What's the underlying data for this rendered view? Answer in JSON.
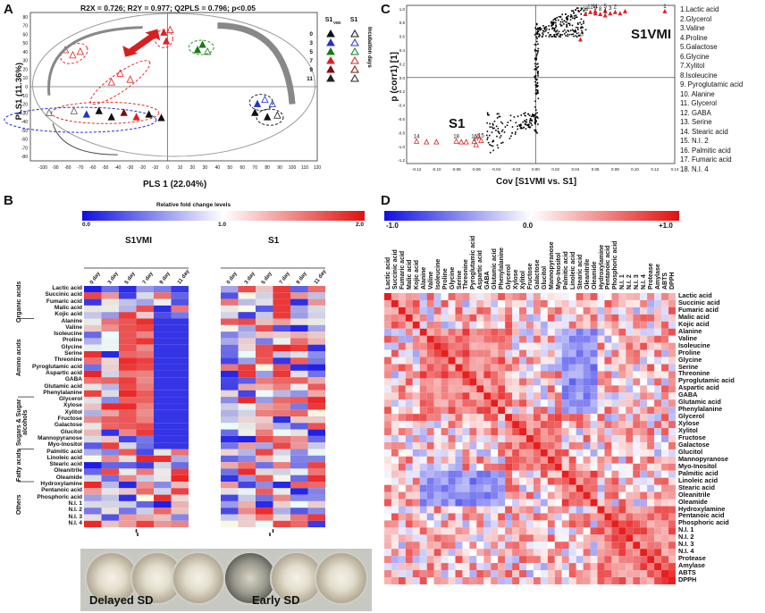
{
  "panels": {
    "a": "A",
    "b": "B",
    "c": "C",
    "d": "D"
  },
  "panelA": {
    "stats": "R2X = 0.726; R2Y = 0.977; Q2PLS = 0.796; p<0.05",
    "xlabel": "PLS 1 (22.04%)",
    "ylabel": "PLS1 (11.36%)",
    "xticks": [
      "-100",
      "-90",
      "-80",
      "-70",
      "-60",
      "-50",
      "-40",
      "-30",
      "-20",
      "-10",
      "0",
      "10",
      "20",
      "30",
      "40",
      "50",
      "60",
      "70",
      "80",
      "90",
      "100",
      "110",
      "120"
    ],
    "yticks": [
      "80",
      "70",
      "60",
      "50",
      "40",
      "30",
      "20",
      "10",
      "0",
      "-10",
      "-20",
      "-30",
      "-40",
      "-50",
      "-60",
      "-70",
      "-80"
    ],
    "legend_title": "Incubation days",
    "legend_col1": "S1VMI",
    "legend_col2": "S1",
    "legend_days": [
      "0",
      "3",
      "5",
      "7",
      "9",
      "11"
    ],
    "colors": {
      "0": "#111111",
      "3": "#2233cc",
      "5": "#1a7a1a",
      "7": "#e02020",
      "9": "#7a1010",
      "11": "#222222"
    }
  },
  "panelC": {
    "xlabel": "Cov [S1VMI vs. S1]",
    "ylabel": "p (corr1) [1]",
    "xticks": [
      "-0.12",
      "-0.10",
      "-0.08",
      "-0.06",
      "-0.04",
      "-0.02",
      "0.00",
      "0.02",
      "0.04",
      "0.06",
      "0.08",
      "0.10",
      "0.12",
      "0.14"
    ],
    "yticks": [
      "1.0",
      "0.8",
      "0.6",
      "0.4",
      "0.2",
      "0.0",
      "-0.2",
      "-0.4",
      "-0.6",
      "-0.8",
      "-1.0",
      "-1.2"
    ],
    "region_top": "S1VMI",
    "region_bottom": "S1",
    "list": [
      "1.Lactic acid",
      "2.Glycerol",
      "3.Valine",
      "4.Proline",
      "5.Galactose",
      "6.Glycine",
      "7.Xylitol",
      "8.Isoleucine",
      "9. Pyroglutamic acid",
      "10. Alanine",
      "11. Glycerol",
      "12. GABA",
      "13. Serine",
      "14. Stearic acid",
      "15. N.I. 2",
      "16. Palmitic acid",
      "17. Fumaric acid",
      "18. N.I. 4"
    ]
  },
  "panelB": {
    "scale_title": "Relative fold change levels",
    "scale_ticks": [
      "0.0",
      "1.0",
      "2.0"
    ],
    "group1": "S1VMI",
    "group2": "S1",
    "days": [
      "0 day",
      "3 day",
      "5 day",
      "7 day",
      "9 day",
      "11 day"
    ],
    "rows": [
      "Lactic acid",
      "Succinic acid",
      "Fumaric acid",
      "Malic acid",
      "Kojic acid",
      "Alanine",
      "Valine",
      "Isoleucine",
      "Proline",
      "Glycine",
      "Serine",
      "Threonine",
      "Pyroglutamic acid",
      "Aspartic acid",
      "GABA",
      "Glutamic acid",
      "Phenylalanine",
      "Glycerol",
      "Xylose",
      "Xylitol",
      "Fructose",
      "Galactose",
      "Glucitol",
      "Mannopyranose",
      "Myo-Inositol",
      "Palmitic acid",
      "Linoleic acid",
      "Stearic acid",
      "Oleanitrile",
      "Oleamide",
      "Hydroxylamine",
      "Pentanoic acid",
      "Phosphoric acid",
      "N.I. 1",
      "N.I. 2",
      "N.I. 3",
      "N.I. 4"
    ],
    "categories": [
      "Organic acids",
      "Amino acids",
      "Sugars & Sugar alcohols",
      "Fatty acids",
      "Others"
    ],
    "phenotype1": "Delayed SD",
    "phenotype2": "Early SD"
  },
  "panelD": {
    "scale_ticks": [
      "-1.0",
      "0.0",
      "+1.0"
    ],
    "vars": [
      "Lactic acid",
      "Succinic acid",
      "Fumaric acid",
      "Malic acid",
      "Kojic acid",
      "Alanine",
      "Valine",
      "Isoleucine",
      "Proline",
      "Glycine",
      "Serine",
      "Threonine",
      "Pyroglutamic acid",
      "Aspartic acid",
      "GABA",
      "Glutamic acid",
      "Phenylalanine",
      "Glycerol",
      "Xylose",
      "Xylitol",
      "Fructose",
      "Galactose",
      "Glucitol",
      "Mannopyranose",
      "Myo-Inositol",
      "Palmitic acid",
      "Linoleic acid",
      "Stearic acid",
      "Oleanitrile",
      "Oleamide",
      "Hydroxylamine",
      "Pentanoic acid",
      "Phosphoric acid",
      "N.I. 1",
      "N.I. 2",
      "N.I. 3",
      "N.I. 4",
      "Protease",
      "Amylase",
      "ABTS",
      "DPPH"
    ]
  }
}
